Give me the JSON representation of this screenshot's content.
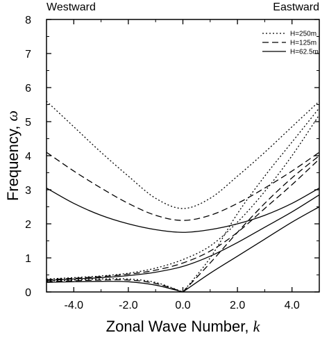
{
  "chart_data": {
    "type": "line",
    "xlabel": "Zonal Wave Number, ",
    "xlabel_symbol": "k",
    "ylabel": "Frequency, ",
    "ylabel_symbol": "ω",
    "top_left_label": "Westward",
    "top_right_label": "Eastward",
    "xlim": [
      -5,
      5
    ],
    "ylim": [
      0,
      8
    ],
    "xticks": [
      -4,
      -2,
      0,
      2,
      4
    ],
    "xtick_labels": [
      "-4.0",
      "-2.0",
      "0.0",
      "2.0",
      "4.0"
    ],
    "yticks": [
      0,
      1,
      2,
      3,
      4,
      5,
      6,
      7,
      8
    ],
    "ytick_labels": [
      "0",
      "1",
      "2",
      "3",
      "4",
      "5",
      "6",
      "7",
      "8"
    ],
    "legend_position": "top-right",
    "series": [
      {
        "name": "H=250m",
        "dash": "dotted",
        "curves": [
          {
            "x": [
              -5,
              -4,
              -3,
              -2,
              -1,
              0,
              1,
              2,
              3,
              4,
              5
            ],
            "y": [
              5.6,
              4.85,
              4.1,
              3.4,
              2.75,
              2.45,
              2.75,
              3.4,
              4.1,
              4.85,
              5.6
            ]
          },
          {
            "x": [
              -5,
              -4,
              -3,
              -2,
              -1,
              0,
              1,
              2,
              3,
              4,
              5
            ],
            "y": [
              0.38,
              0.42,
              0.47,
              0.55,
              0.7,
              0.95,
              1.35,
              2.05,
              2.95,
              4.0,
              5.2
            ]
          },
          {
            "x": [
              -5,
              -4,
              -3,
              -2,
              -1,
              0
            ],
            "y": [
              0.32,
              0.35,
              0.38,
              0.38,
              0.28,
              0.0
            ]
          },
          {
            "x": [
              0,
              1,
              2,
              3,
              4,
              5
            ],
            "y": [
              0.0,
              1.0,
              2.3,
              3.4,
              4.4,
              5.4
            ]
          }
        ]
      },
      {
        "name": "H=125m",
        "dash": "dashed",
        "curves": [
          {
            "x": [
              -5,
              -4,
              -3,
              -2,
              -1,
              0,
              1,
              2,
              3,
              4,
              5
            ],
            "y": [
              4.1,
              3.55,
              3.05,
              2.6,
              2.25,
              2.1,
              2.25,
              2.6,
              3.05,
              3.55,
              4.1
            ]
          },
          {
            "x": [
              -5,
              -4,
              -3,
              -2,
              -1,
              0,
              1,
              2,
              3,
              4,
              5
            ],
            "y": [
              0.36,
              0.4,
              0.45,
              0.52,
              0.64,
              0.85,
              1.2,
              1.75,
              2.45,
              3.15,
              3.9
            ]
          },
          {
            "x": [
              -5,
              -4,
              -3,
              -2,
              -1,
              0
            ],
            "y": [
              0.3,
              0.33,
              0.35,
              0.35,
              0.25,
              0.0
            ]
          },
          {
            "x": [
              0,
              1,
              2,
              3,
              4,
              5
            ],
            "y": [
              0.0,
              0.85,
              1.75,
              2.6,
              3.35,
              4.0
            ]
          }
        ]
      },
      {
        "name": "H=62.5m",
        "dash": "solid",
        "curves": [
          {
            "x": [
              -5,
              -4,
              -3,
              -2,
              -1,
              0,
              1,
              2,
              3,
              4,
              5
            ],
            "y": [
              3.05,
              2.6,
              2.25,
              2.0,
              1.83,
              1.75,
              1.83,
              2.0,
              2.25,
              2.6,
              3.05
            ]
          },
          {
            "x": [
              -5,
              -4,
              -3,
              -2,
              -1,
              0,
              1,
              2,
              3,
              4,
              5
            ],
            "y": [
              0.34,
              0.38,
              0.42,
              0.48,
              0.58,
              0.75,
              1.05,
              1.45,
              1.9,
              2.35,
              2.85
            ]
          },
          {
            "x": [
              -5,
              -4,
              -3,
              -2,
              -1,
              0
            ],
            "y": [
              0.28,
              0.3,
              0.31,
              0.3,
              0.2,
              0.0
            ]
          },
          {
            "x": [
              0,
              1,
              2,
              3,
              4,
              5
            ],
            "y": [
              0.0,
              0.55,
              1.05,
              1.55,
              2.05,
              2.5
            ]
          }
        ]
      }
    ]
  }
}
